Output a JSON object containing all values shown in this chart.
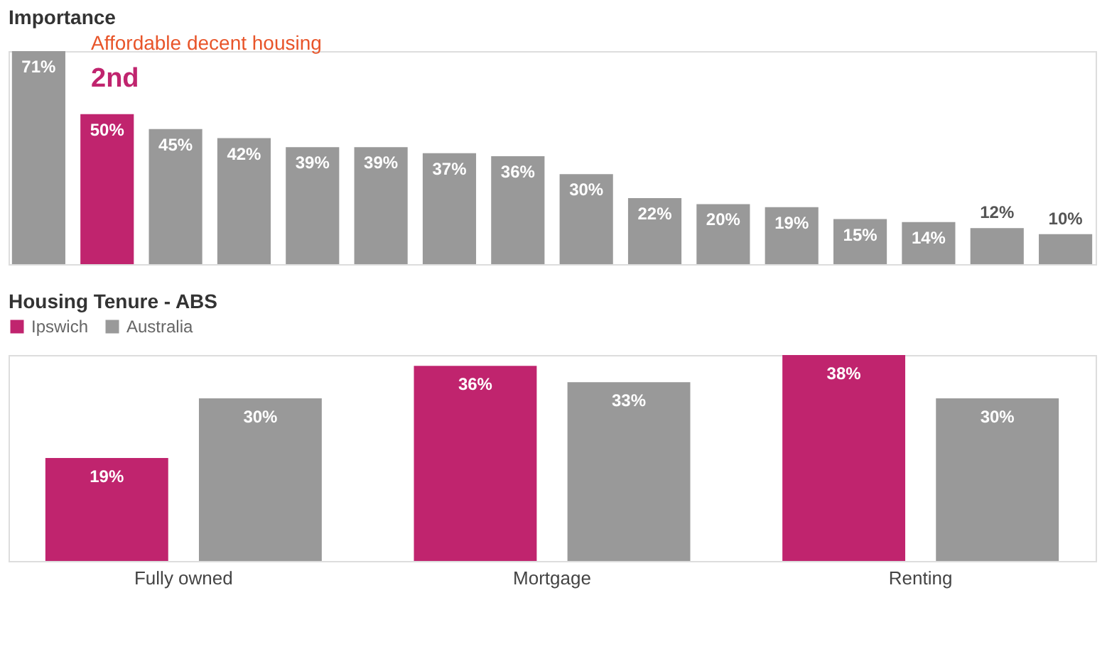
{
  "chart_data": [
    {
      "type": "bar",
      "title": "Importance",
      "categories": [
        null,
        null,
        null,
        null,
        null,
        null,
        null,
        null,
        null,
        null,
        null,
        null,
        null,
        null,
        null,
        null
      ],
      "values": [
        71,
        50,
        45,
        42,
        39,
        39,
        37,
        36,
        30,
        22,
        20,
        19,
        15,
        14,
        12,
        10
      ],
      "colors": [
        "#999999",
        "#c0246e",
        "#999999",
        "#999999",
        "#999999",
        "#999999",
        "#999999",
        "#999999",
        "#999999",
        "#999999",
        "#999999",
        "#999999",
        "#999999",
        "#999999",
        "#999999",
        "#999999"
      ],
      "value_labels": [
        "71%",
        "50%",
        "45%",
        "42%",
        "39%",
        "39%",
        "37%",
        "36%",
        "30%",
        "22%",
        "20%",
        "19%",
        "15%",
        "14%",
        "12%",
        "10%"
      ],
      "annotations": [
        "Affordable decent housing",
        "2nd"
      ]
    },
    {
      "type": "bar",
      "title": "Housing Tenure - ABS",
      "categories": [
        "Fully owned",
        "Mortgage",
        "Renting"
      ],
      "legend": "top left",
      "series": [
        {
          "name": "Ipswich",
          "color": "#c0246e",
          "values": [
            19,
            36,
            38
          ],
          "value_labels": [
            "19%",
            "36%",
            "38%"
          ]
        },
        {
          "name": "Australia",
          "color": "#999999",
          "values": [
            30,
            33,
            30
          ],
          "value_labels": [
            "30%",
            "33%",
            "30%"
          ]
        }
      ]
    }
  ]
}
